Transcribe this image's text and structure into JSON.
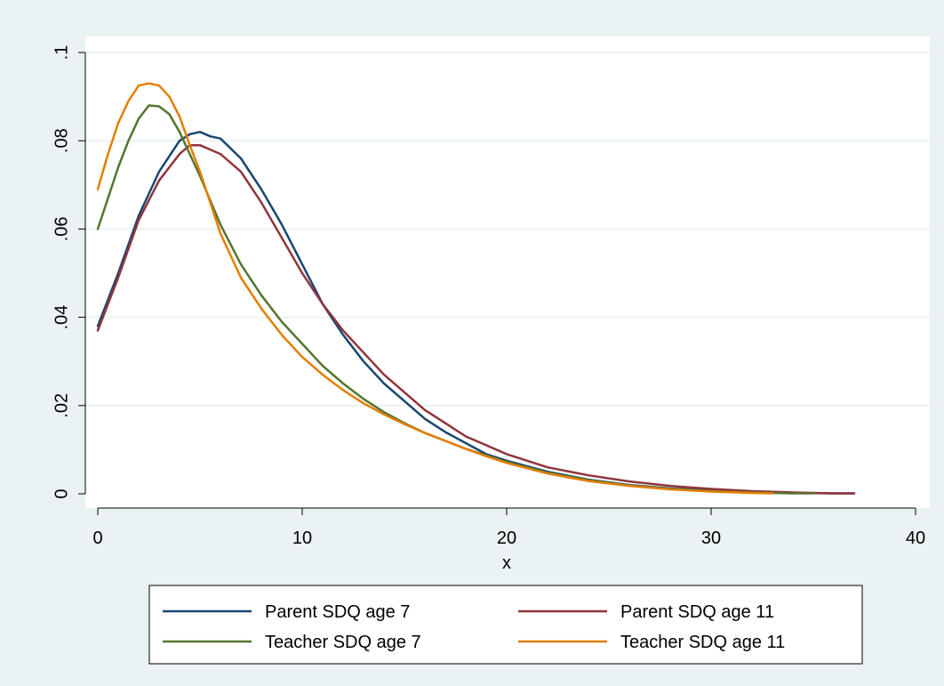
{
  "chart_data": {
    "type": "line",
    "title": "",
    "xlabel": "x",
    "ylabel": "",
    "xlim": [
      0,
      40
    ],
    "ylim": [
      0,
      0.1
    ],
    "x_ticks": [
      0,
      10,
      20,
      30,
      40
    ],
    "x_tick_labels": [
      "0",
      "10",
      "20",
      "30",
      "40"
    ],
    "y_ticks": [
      0,
      0.02,
      0.04,
      0.06,
      0.08,
      0.1
    ],
    "y_tick_labels": [
      "0",
      ".02",
      ".04",
      ".06",
      ".08",
      ".1"
    ],
    "grid": "horizontal",
    "legend": {
      "position": "bottom",
      "columns": 2
    },
    "background_color": "#eaf2f3",
    "plot_background_color": "#ffffff",
    "series": [
      {
        "name": "Parent SDQ age 7",
        "color": "#1a476f",
        "x": [
          0,
          1,
          2,
          3,
          4,
          4.5,
          5,
          5.5,
          6,
          7,
          8,
          9,
          10,
          11,
          12,
          13,
          14,
          15,
          16,
          17,
          18,
          19,
          20,
          22,
          24,
          26,
          28,
          30,
          32,
          34,
          36,
          37
        ],
        "y": [
          0.038,
          0.05,
          0.063,
          0.073,
          0.08,
          0.0815,
          0.082,
          0.081,
          0.0805,
          0.076,
          0.069,
          0.061,
          0.052,
          0.043,
          0.036,
          0.03,
          0.025,
          0.021,
          0.017,
          0.014,
          0.0115,
          0.009,
          0.0075,
          0.005,
          0.0032,
          0.002,
          0.0012,
          0.0007,
          0.0004,
          0.0002,
          0.0001,
          0.0001
        ]
      },
      {
        "name": "Parent SDQ age 11",
        "color": "#90353b",
        "x": [
          0,
          1,
          2,
          3,
          4,
          4.5,
          5,
          5.5,
          6,
          7,
          8,
          9,
          10,
          11,
          12,
          13,
          14,
          15,
          16,
          17,
          18,
          19,
          20,
          22,
          24,
          26,
          28,
          30,
          32,
          34,
          36,
          37
        ],
        "y": [
          0.037,
          0.049,
          0.062,
          0.071,
          0.077,
          0.079,
          0.079,
          0.078,
          0.077,
          0.073,
          0.066,
          0.058,
          0.05,
          0.043,
          0.037,
          0.032,
          0.027,
          0.023,
          0.019,
          0.016,
          0.013,
          0.011,
          0.009,
          0.006,
          0.0042,
          0.0028,
          0.0018,
          0.0011,
          0.0006,
          0.0003,
          0.0001,
          0.0001
        ]
      },
      {
        "name": "Teacher SDQ age 7",
        "color": "#55752f",
        "x": [
          0,
          0.5,
          1,
          1.5,
          2,
          2.5,
          3,
          3.5,
          4,
          4.5,
          5,
          6,
          7,
          8,
          9,
          10,
          11,
          12,
          13,
          14,
          15,
          16,
          17,
          18,
          19,
          20,
          22,
          24,
          26,
          28,
          30,
          32,
          34,
          35
        ],
        "y": [
          0.06,
          0.067,
          0.074,
          0.08,
          0.085,
          0.088,
          0.0878,
          0.086,
          0.082,
          0.077,
          0.072,
          0.061,
          0.052,
          0.045,
          0.039,
          0.034,
          0.029,
          0.025,
          0.0215,
          0.0185,
          0.016,
          0.0138,
          0.012,
          0.0102,
          0.0087,
          0.0072,
          0.0048,
          0.0031,
          0.0019,
          0.0011,
          0.0006,
          0.0003,
          0.0001,
          0.0001
        ]
      },
      {
        "name": "Teacher SDQ age 11",
        "color": "#e37e00",
        "x": [
          0,
          0.5,
          1,
          1.5,
          2,
          2.5,
          3,
          3.5,
          4,
          4.5,
          5,
          6,
          7,
          8,
          9,
          10,
          11,
          12,
          13,
          14,
          15,
          16,
          17,
          18,
          19,
          20,
          22,
          24,
          26,
          28,
          30,
          32,
          33
        ],
        "y": [
          0.069,
          0.077,
          0.084,
          0.089,
          0.0925,
          0.093,
          0.0925,
          0.09,
          0.0855,
          0.079,
          0.073,
          0.059,
          0.049,
          0.042,
          0.036,
          0.031,
          0.027,
          0.0235,
          0.0205,
          0.018,
          0.0158,
          0.0138,
          0.012,
          0.0102,
          0.0085,
          0.007,
          0.0046,
          0.0029,
          0.0018,
          0.001,
          0.0005,
          0.0002,
          0.0001
        ]
      }
    ]
  }
}
